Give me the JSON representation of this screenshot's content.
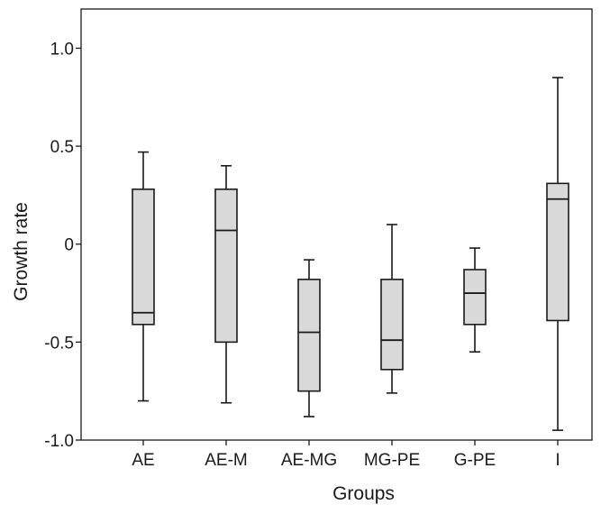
{
  "chart_data": {
    "type": "boxplot",
    "xlabel": "Groups",
    "ylabel": "Growth rate",
    "ylim": [
      -1.0,
      1.2
    ],
    "yticks": [
      {
        "value": -1.0,
        "label": "-1.0"
      },
      {
        "value": -0.5,
        "label": "-0.5"
      },
      {
        "value": 0,
        "label": "0"
      },
      {
        "value": 0.5,
        "label": "0.5"
      },
      {
        "value": 1.0,
        "label": "1.0"
      }
    ],
    "categories": [
      "AE",
      "AE-M",
      "AE-MG",
      "MG-PE",
      "G-PE",
      "I"
    ],
    "boxes": [
      {
        "category": "AE",
        "min": -0.8,
        "q1": -0.41,
        "median": -0.35,
        "q3": 0.28,
        "max": 0.47
      },
      {
        "category": "AE-M",
        "min": -0.81,
        "q1": -0.5,
        "median": 0.07,
        "q3": 0.28,
        "max": 0.4
      },
      {
        "category": "AE-MG",
        "min": -0.88,
        "q1": -0.75,
        "median": -0.45,
        "q3": -0.18,
        "max": -0.08
      },
      {
        "category": "MG-PE",
        "min": -0.76,
        "q1": -0.64,
        "median": -0.49,
        "q3": -0.18,
        "max": 0.1
      },
      {
        "category": "G-PE",
        "min": -0.55,
        "q1": -0.41,
        "median": -0.25,
        "q3": -0.13,
        "max": -0.02
      },
      {
        "category": "I",
        "min": -0.95,
        "q1": -0.39,
        "median": 0.23,
        "q3": 0.31,
        "max": 0.85
      }
    ],
    "box_fill": "#d9d9d9",
    "line_color": "#1a1a1a",
    "grid": false,
    "legend": "none"
  }
}
